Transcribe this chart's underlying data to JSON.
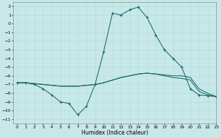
{
  "title": "",
  "xlabel": "Humidex (Indice chaleur)",
  "bg_color": "#c8e8e8",
  "grid_color": "#b0d8d8",
  "line_color": "#1a6b6b",
  "xlim": [
    -0.5,
    23
  ],
  "ylim": [
    -11.5,
    2.5
  ],
  "yticks": [
    2,
    1,
    0,
    -1,
    -2,
    -3,
    -4,
    -5,
    -6,
    -7,
    -8,
    -9,
    -10,
    -11
  ],
  "xticks": [
    0,
    1,
    2,
    3,
    4,
    5,
    6,
    7,
    8,
    9,
    10,
    11,
    12,
    13,
    14,
    15,
    16,
    17,
    18,
    19,
    20,
    21,
    22,
    23
  ],
  "line1_x": [
    0,
    1,
    2,
    3,
    4,
    5,
    6,
    7,
    8,
    9,
    10,
    11,
    12,
    13,
    14,
    15,
    16,
    17,
    18,
    19,
    20,
    21,
    22,
    23
  ],
  "line1_y": [
    -6.8,
    -6.8,
    -7.0,
    -7.5,
    -8.2,
    -9.0,
    -9.2,
    -10.5,
    -9.5,
    -7.0,
    -3.2,
    1.2,
    1.0,
    1.6,
    1.9,
    0.7,
    -1.3,
    -3.0,
    -4.0,
    -5.0,
    -7.5,
    -8.2,
    -8.3,
    -8.4
  ],
  "line2_x": [
    0,
    1,
    2,
    3,
    4,
    5,
    6,
    7,
    8,
    9,
    10,
    11,
    12,
    13,
    14,
    15,
    16,
    17,
    18,
    19,
    20,
    21,
    22,
    23
  ],
  "line2_y": [
    -6.8,
    -6.8,
    -6.9,
    -7.0,
    -7.1,
    -7.2,
    -7.2,
    -7.2,
    -7.1,
    -7.0,
    -6.8,
    -6.5,
    -6.2,
    -6.0,
    -5.8,
    -5.7,
    -5.8,
    -6.0,
    -6.2,
    -6.3,
    -6.5,
    -7.8,
    -8.2,
    -8.4
  ],
  "line3_x": [
    0,
    1,
    2,
    3,
    4,
    5,
    6,
    7,
    8,
    9,
    10,
    11,
    12,
    13,
    14,
    15,
    16,
    17,
    18,
    19,
    20,
    21,
    22,
    23
  ],
  "line3_y": [
    -6.8,
    -6.8,
    -6.9,
    -7.0,
    -7.1,
    -7.2,
    -7.2,
    -7.2,
    -7.1,
    -7.0,
    -6.8,
    -6.5,
    -6.2,
    -6.0,
    -5.8,
    -5.7,
    -5.8,
    -5.9,
    -6.0,
    -6.0,
    -6.2,
    -7.5,
    -8.0,
    -8.4
  ]
}
